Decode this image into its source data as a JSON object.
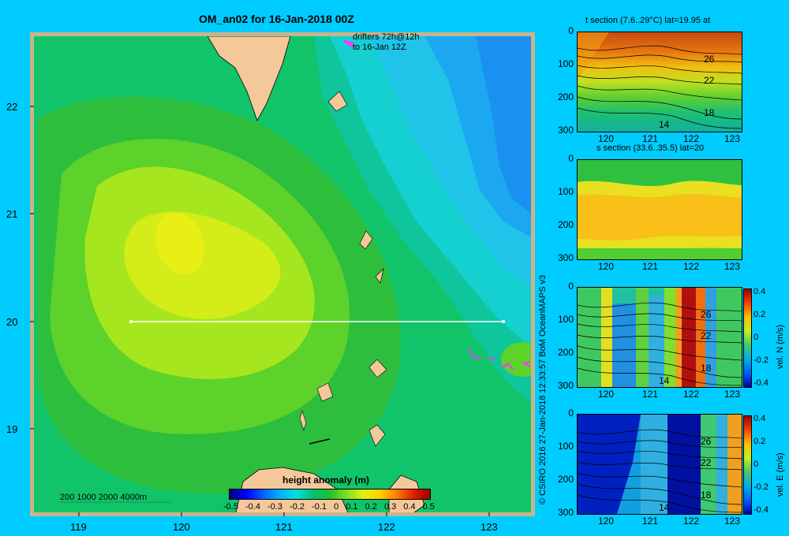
{
  "main_map": {
    "title": "OM_an02 for 16-Jan-2018 00Z",
    "drifters_label_1": "drifters 72h@12h",
    "drifters_label_2": "to 16-Jan 12Z",
    "depth_legend": "200  1000  2000  4000m",
    "lat_ticks": [
      "22",
      "21",
      "20",
      "19"
    ],
    "lon_ticks": [
      "119",
      "120",
      "121",
      "122",
      "123"
    ],
    "colorbar_title": "height anomaly (m)",
    "colorbar_ticks": [
      "-0.5",
      "-0.4",
      "-0.3",
      "-0.2",
      "-0.1",
      "0",
      "0.1",
      "0.2",
      "0.3",
      "0.4",
      "0.5"
    ],
    "colors": {
      "land": "#f5c89a",
      "frame": "#c8b48c",
      "track": "#ffffff",
      "drifter": "#ff33ff"
    }
  },
  "panels": [
    {
      "id": "t-section",
      "title": "t section (7.6..29°C) lat=19.95 at",
      "y_ticks": [
        "0",
        "100",
        "200",
        "300"
      ],
      "x_ticks": [
        "120",
        "121",
        "122",
        "123"
      ],
      "contour_labels": [
        "26",
        "22",
        "18",
        "14"
      ]
    },
    {
      "id": "s-section",
      "title": "s section (33.6..35.5) lat=20",
      "y_ticks": [
        "0",
        "100",
        "200",
        "300"
      ],
      "x_ticks": [
        "120",
        "121",
        "122",
        "123"
      ],
      "contour_labels": []
    },
    {
      "id": "vel-n",
      "title": "",
      "y_ticks": [
        "0",
        "100",
        "200",
        "300"
      ],
      "x_ticks": [
        "120",
        "121",
        "122",
        "123"
      ],
      "contour_labels": [
        "26",
        "22",
        "18",
        "14"
      ],
      "colorbar_label": "vel. N (m/s)",
      "colorbar_ticks": [
        "0.4",
        "0.2",
        "0",
        "-0.2",
        "-0.4"
      ]
    },
    {
      "id": "vel-e",
      "title": "",
      "y_ticks": [
        "0",
        "100",
        "200",
        "300"
      ],
      "x_ticks": [
        "120",
        "121",
        "122",
        "123"
      ],
      "contour_labels": [
        "26",
        "22",
        "18",
        "14"
      ],
      "colorbar_label": "vel. E (m/s)",
      "colorbar_ticks": [
        "0.4",
        "0.2",
        "0",
        "-0.2",
        "-0.4"
      ]
    }
  ],
  "copyright": "© CSIRO 2016   27-Jan-2018 12:33:57 BoM OceanMAPS v3"
}
